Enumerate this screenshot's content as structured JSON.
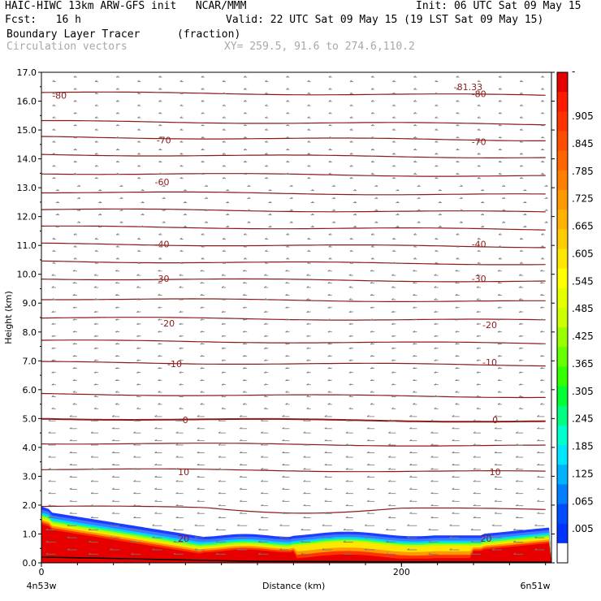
{
  "header": {
    "model_title": "HAIC-HIWC 13km ARW-GFS init",
    "org": "NCAR/MMM",
    "init": "Init: 06 UTC Sat 09 May 15",
    "fcst_label": "Fcst:",
    "fcst_value": "16 h",
    "valid": "Valid: 22 UTC Sat 09 May 15 (19 LST Sat 09 May 15)",
    "field_name": "Boundary Layer Tracer",
    "field_units": "(fraction)",
    "vector_name": "Circulation vectors",
    "xy_range": "XY= 259.5, 91.6 to 274.6,110.2"
  },
  "chart_data": {
    "type": "heatmap",
    "xlabel": "Distance (km)",
    "ylabel": "Height (km)",
    "xlim": [
      0,
      283.3
    ],
    "ylim": [
      0,
      17
    ],
    "x_ticks": [
      {
        "value": 0,
        "label": "0"
      },
      {
        "value": 200,
        "label": "200"
      }
    ],
    "x_end_labels": {
      "left": "4n53w",
      "right": "6n51w"
    },
    "y_ticks": [
      0,
      1,
      2,
      3,
      4,
      5,
      6,
      7,
      8,
      9,
      10,
      11,
      12,
      13,
      14,
      15,
      16,
      17
    ],
    "y_tick_labels": [
      "0.0",
      "1.0",
      "2.0",
      "3.0",
      "4.0",
      "5.0",
      "6.0",
      "7.0",
      "8.0",
      "9.0",
      "10.0",
      "11.0",
      "12.0",
      "13.0",
      "14.0",
      "15.0",
      "16.0",
      "17.0"
    ],
    "colorbar": {
      "labels": [
        "-",
        ".905",
        ".845",
        ".785",
        ".725",
        ".665",
        ".605",
        ".545",
        ".485",
        ".425",
        ".365",
        ".305",
        ".245",
        ".185",
        ".125",
        ".065",
        ".005"
      ],
      "colors": [
        "#e60000",
        "#ff1a00",
        "#ff3300",
        "#ff4d00",
        "#ff6600",
        "#ff8000",
        "#ff9900",
        "#ffb300",
        "#ffcc00",
        "#ffe600",
        "#ffff00",
        "#e6ff00",
        "#ccff00",
        "#99ff00",
        "#66ff00",
        "#33ff00",
        "#00ff33",
        "#00ff80",
        "#00ffcc",
        "#00e6ff",
        "#00b3ff",
        "#0080ff",
        "#004dff",
        "#0033ff",
        "#ffffff"
      ]
    },
    "isotherm_labels": [
      {
        "label": "-80",
        "x": 10,
        "y": 16.2
      },
      {
        "label": "-80",
        "x": 243,
        "y": 16.25
      },
      {
        "label": "-81.33",
        "x": 237,
        "y": 16.5
      },
      {
        "label": "-70",
        "x": 68,
        "y": 14.65
      },
      {
        "label": "-70",
        "x": 243,
        "y": 14.6
      },
      {
        "label": "-60",
        "x": 67,
        "y": 13.2
      },
      {
        "label": "-40",
        "x": 67,
        "y": 11.05
      },
      {
        "label": "-40",
        "x": 243,
        "y": 11.05
      },
      {
        "label": "-30",
        "x": 67,
        "y": 9.85
      },
      {
        "label": "-30",
        "x": 243,
        "y": 9.85
      },
      {
        "label": "-20",
        "x": 70,
        "y": 8.3
      },
      {
        "label": "-20",
        "x": 249,
        "y": 8.25
      },
      {
        "label": "-10",
        "x": 74,
        "y": 6.9
      },
      {
        "label": "-10",
        "x": 249,
        "y": 6.95
      },
      {
        "label": "0",
        "x": 80,
        "y": 4.95
      },
      {
        "label": "0",
        "x": 252,
        "y": 4.95
      },
      {
        "label": "10",
        "x": 79,
        "y": 3.15
      },
      {
        "label": "10",
        "x": 252,
        "y": 3.15
      },
      {
        "label": "20",
        "x": 79,
        "y": 0.85
      },
      {
        "label": "20",
        "x": 247,
        "y": 0.85
      }
    ],
    "isotherm_heights": [
      16.3,
      15.3,
      14.75,
      14.15,
      13.5,
      12.85,
      12.25,
      11.65,
      11.05,
      10.45,
      9.85,
      9.15,
      8.5,
      7.7,
      6.95,
      5.85,
      5.0,
      4.15,
      3.25,
      1.95
    ]
  }
}
